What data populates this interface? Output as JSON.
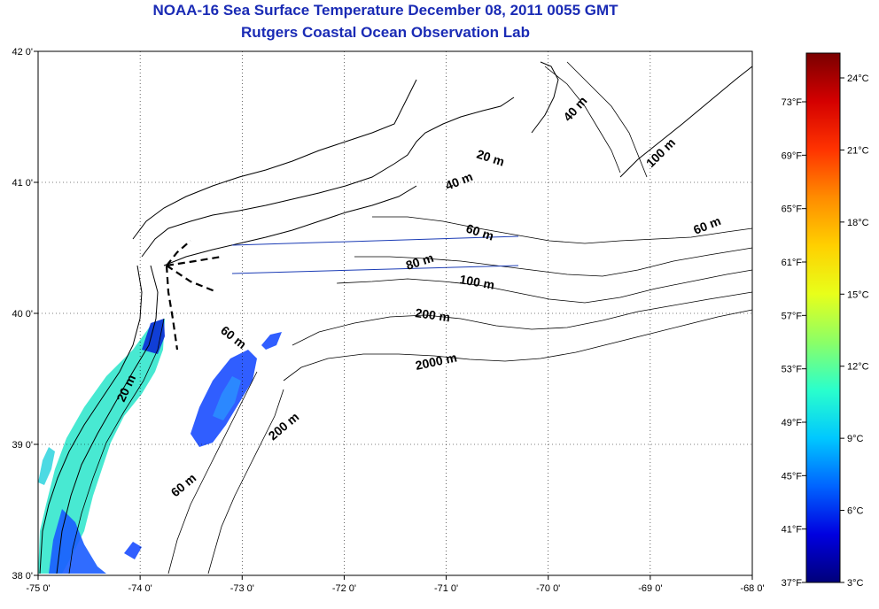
{
  "header": {
    "title": "NOAA-16 Sea Surface Temperature December 08, 2011 0055 GMT",
    "subtitle": "Rutgers Coastal Ocean Observation Lab"
  },
  "map": {
    "lon_range": [
      -75,
      -68
    ],
    "lat_range": [
      38,
      42
    ],
    "lon_ticks": [
      "-75 0'",
      "-74 0'",
      "-73 0'",
      "-72 0'",
      "-71 0'",
      "-70 0'",
      "-69 0'",
      "-68 0'"
    ],
    "lat_ticks": [
      "42 0'",
      "41 0'",
      "40 0'",
      "39 0'",
      "38 0'"
    ],
    "grid": "dotted",
    "land_color": "#ffffff",
    "coastline_color": "#000000",
    "transect_color": "#1a3bb5",
    "contour_labels": [
      "20 m",
      "40 m",
      "60 m",
      "80 m",
      "100 m",
      "200 m",
      "2000 m",
      "60 m",
      "200 m",
      "60 m",
      "20 m",
      "40 m",
      "100 m",
      "60 m"
    ]
  },
  "colorbar": {
    "celsius_labels": [
      "24°C",
      "21°C",
      "18°C",
      "15°C",
      "12°C",
      "9°C",
      "6°C",
      "3°C"
    ],
    "fahrenheit_labels": [
      "73°F",
      "69°F",
      "65°F",
      "61°F",
      "57°F",
      "53°F",
      "49°F",
      "45°F",
      "41°F",
      "37°F"
    ],
    "colors": [
      "#7a0000",
      "#d40000",
      "#ff3300",
      "#ff8c00",
      "#ffd000",
      "#e8ff1a",
      "#8cff66",
      "#2affcc",
      "#00c8ff",
      "#0064ff",
      "#0000e0",
      "#00007a"
    ]
  }
}
